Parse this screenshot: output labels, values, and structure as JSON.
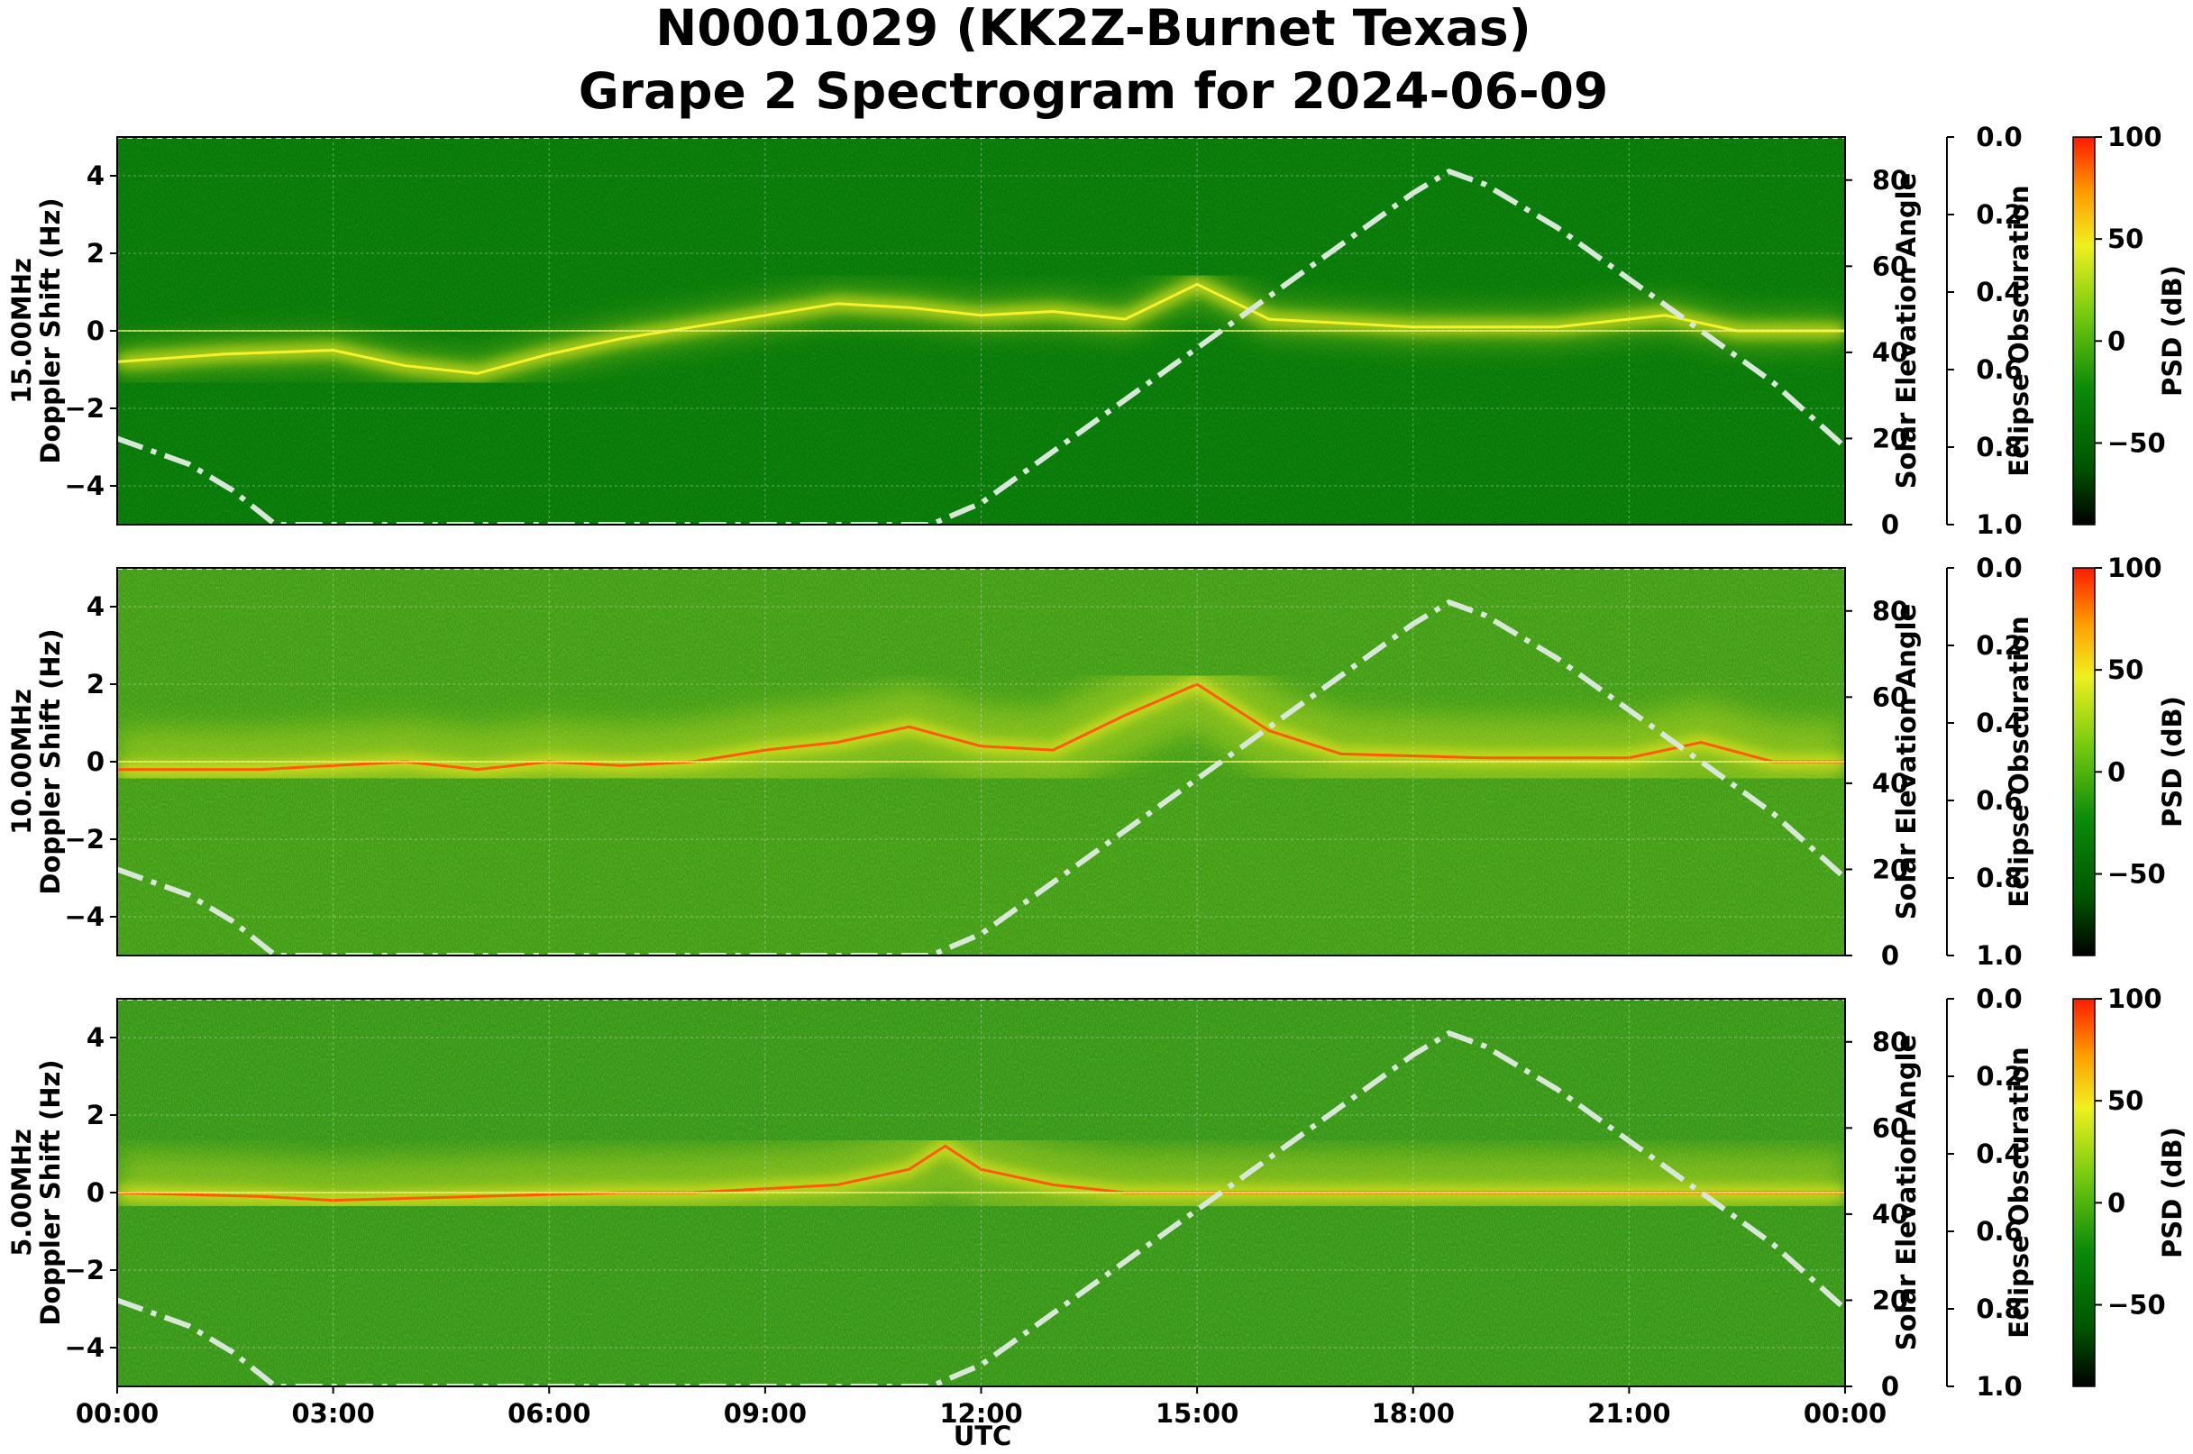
{
  "title_line1": "N0001029 (KK2Z-Burnet Texas)",
  "title_line2": "Grape 2 Spectrogram for 2024-06-09",
  "chart_data": {
    "type": "heatmap",
    "title": "N0001029 (KK2Z-Burnet Texas) Grape 2 Spectrogram for 2024-06-09",
    "xlabel": "UTC",
    "x_ticks": [
      "00:00",
      "03:00",
      "06:00",
      "09:00",
      "12:00",
      "15:00",
      "18:00",
      "21:00",
      "00:00"
    ],
    "xlim_hours": [
      0,
      24
    ],
    "doppler_ticks": [
      "4",
      "2",
      "0",
      "−2",
      "−4"
    ],
    "doppler_tick_values": [
      4,
      2,
      0,
      -2,
      -4
    ],
    "doppler_lim": [
      -5,
      5
    ],
    "solar_ylabel": "Solar Elevation Angle",
    "solar_ticks": [
      "80",
      "60",
      "40",
      "20",
      "0"
    ],
    "solar_tick_values": [
      80,
      60,
      40,
      20,
      0
    ],
    "solar_lim": [
      0,
      90
    ],
    "eclipse_ylabel": "Eclipse Obscuration",
    "eclipse_ticks": [
      "0.0",
      "0.2",
      "0.4",
      "0.6",
      "0.8",
      "1.0"
    ],
    "eclipse_tick_values": [
      0.0,
      0.2,
      0.4,
      0.6,
      0.8,
      1.0
    ],
    "cbar_label": "PSD (dB)",
    "cbar_ticks": [
      "100",
      "50",
      "0",
      "−50"
    ],
    "cbar_tick_values": [
      100,
      50,
      0,
      -50
    ],
    "cbar_lim": [
      -90,
      100
    ],
    "colors": {
      "background_green": "#0a7a0a",
      "signal_yellow": "#e8e81a",
      "signal_red": "#ff3a00",
      "solar_curve": "#d8e8d8"
    },
    "panels": [
      {
        "name": "15.00MHz",
        "ylabel_line1": "15.00MHz",
        "ylabel_line2": "Doppler Shift (Hz)",
        "doppler_trace_hz": [
          [
            0,
            -0.8
          ],
          [
            1.5,
            -0.6
          ],
          [
            3,
            -0.5
          ],
          [
            4,
            -0.9
          ],
          [
            5,
            -1.1
          ],
          [
            6,
            -0.6
          ],
          [
            7,
            -0.2
          ],
          [
            8,
            0.1
          ],
          [
            9,
            0.4
          ],
          [
            10,
            0.7
          ],
          [
            11,
            0.6
          ],
          [
            12,
            0.4
          ],
          [
            13,
            0.5
          ],
          [
            14,
            0.3
          ],
          [
            15,
            1.2
          ],
          [
            16,
            0.3
          ],
          [
            18,
            0.1
          ],
          [
            20,
            0.1
          ],
          [
            21.5,
            0.4
          ],
          [
            22.5,
            0.0
          ],
          [
            24,
            0.0
          ]
        ],
        "trace_intensity": "medium",
        "background_intensity": "low"
      },
      {
        "name": "10.00MHz",
        "ylabel_line1": "10.00MHz",
        "ylabel_line2": "Doppler Shift (Hz)",
        "doppler_trace_hz": [
          [
            0,
            -0.2
          ],
          [
            2,
            -0.2
          ],
          [
            4,
            0.0
          ],
          [
            5,
            -0.2
          ],
          [
            6,
            0.0
          ],
          [
            7,
            -0.1
          ],
          [
            8,
            0.0
          ],
          [
            9,
            0.3
          ],
          [
            10,
            0.5
          ],
          [
            11,
            0.9
          ],
          [
            12,
            0.4
          ],
          [
            13,
            0.3
          ],
          [
            14,
            1.2
          ],
          [
            15,
            2.0
          ],
          [
            16,
            0.8
          ],
          [
            17,
            0.2
          ],
          [
            19,
            0.1
          ],
          [
            21,
            0.1
          ],
          [
            22,
            0.5
          ],
          [
            23,
            0.0
          ],
          [
            24,
            0.0
          ]
        ],
        "trace_intensity": "high",
        "background_intensity": "medium"
      },
      {
        "name": "5.00MHz",
        "ylabel_line1": "5.00MHz",
        "ylabel_line2": "Doppler Shift (Hz)",
        "doppler_trace_hz": [
          [
            0,
            0.0
          ],
          [
            2,
            -0.1
          ],
          [
            3,
            -0.2
          ],
          [
            5,
            -0.1
          ],
          [
            7,
            0.0
          ],
          [
            8,
            0.0
          ],
          [
            9,
            0.1
          ],
          [
            10,
            0.2
          ],
          [
            11,
            0.6
          ],
          [
            11.5,
            1.2
          ],
          [
            12,
            0.6
          ],
          [
            13,
            0.2
          ],
          [
            14,
            0.0
          ],
          [
            24,
            0.0
          ]
        ],
        "trace_intensity": "high",
        "background_intensity": "medium"
      }
    ],
    "solar_elevation_deg": [
      [
        0,
        20
      ],
      [
        1,
        14
      ],
      [
        1.6,
        8
      ],
      [
        2.2,
        0
      ],
      [
        11.3,
        0
      ],
      [
        12,
        5
      ],
      [
        13,
        17
      ],
      [
        14,
        29
      ],
      [
        15,
        41
      ],
      [
        16,
        53
      ],
      [
        17,
        65
      ],
      [
        18,
        77
      ],
      [
        18.5,
        82
      ],
      [
        19,
        79
      ],
      [
        20,
        69
      ],
      [
        21,
        57
      ],
      [
        22,
        45
      ],
      [
        23,
        33
      ],
      [
        24,
        18
      ]
    ]
  }
}
